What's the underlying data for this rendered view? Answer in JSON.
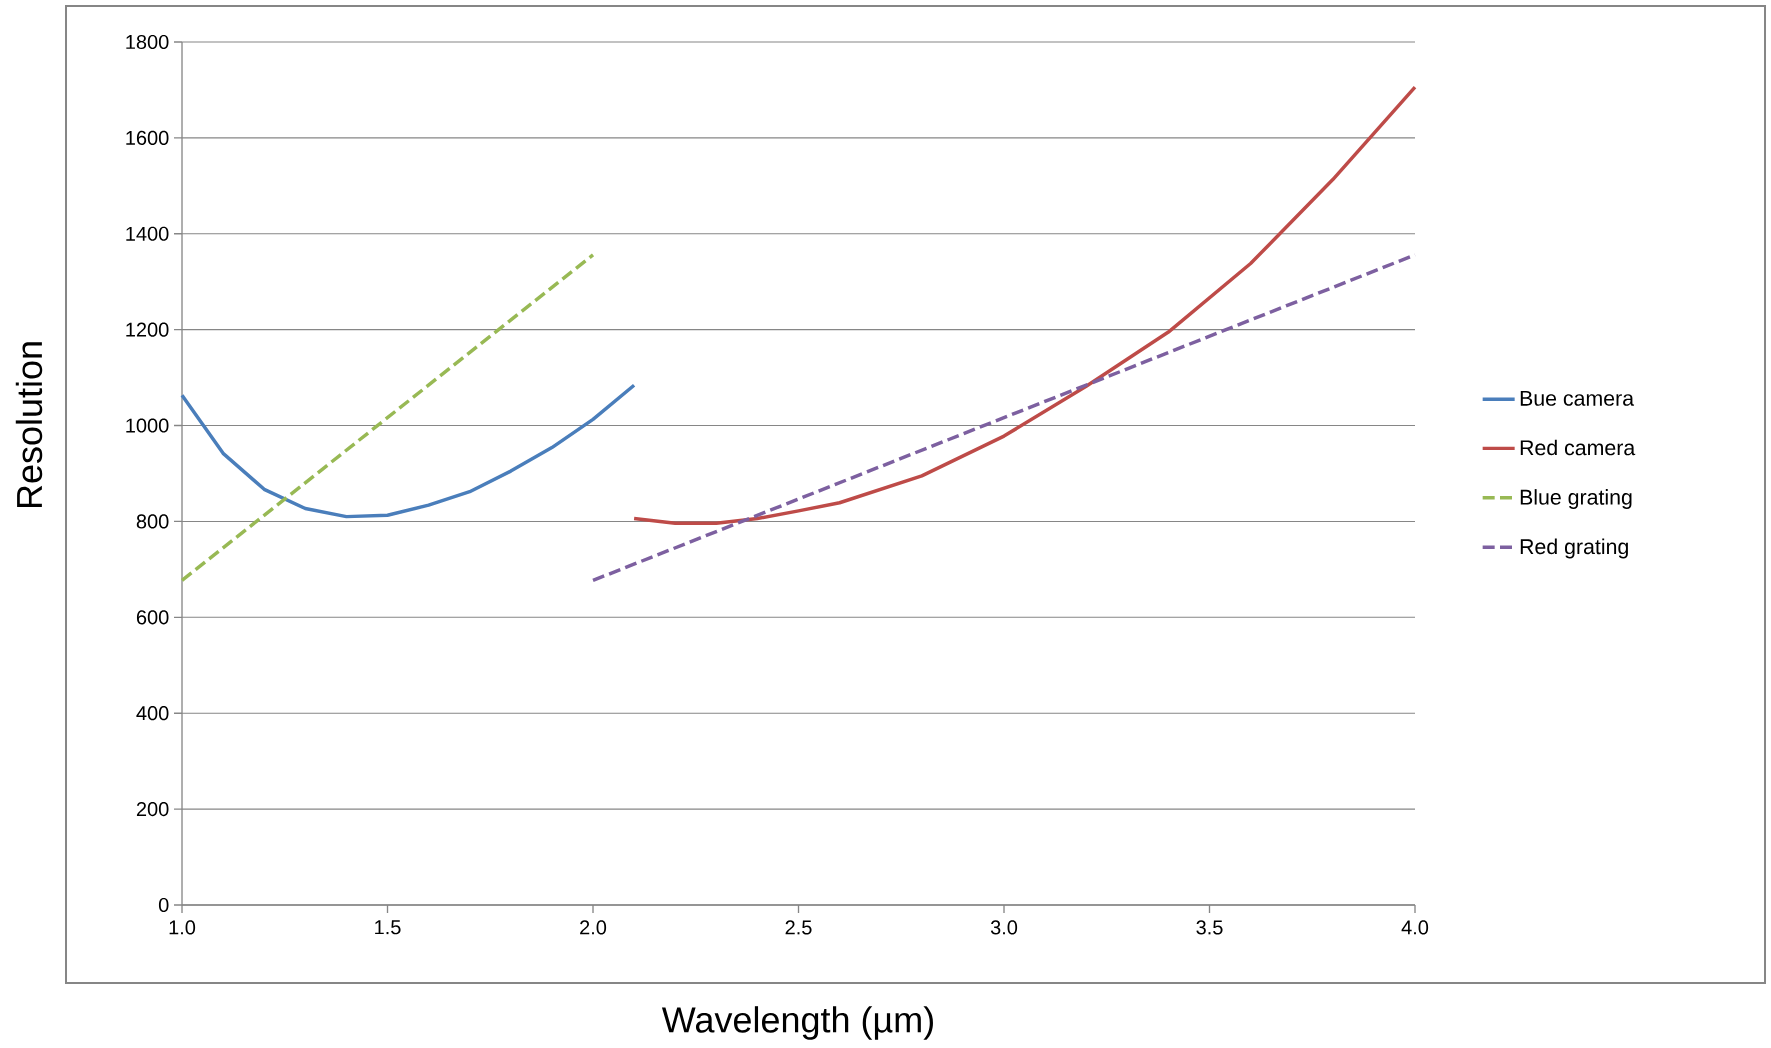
{
  "chart_data": {
    "type": "line",
    "xlabel": "Wavelength (µm)",
    "ylabel": "Resolution",
    "xlim": [
      1,
      4
    ],
    "ylim": [
      0,
      1800
    ],
    "xticks": [
      {
        "value": 1,
        "label": "1.0"
      },
      {
        "value": 1.5,
        "label": "1.5"
      },
      {
        "value": 2,
        "label": "2.0"
      },
      {
        "value": 2.5,
        "label": "2.5"
      },
      {
        "value": 3,
        "label": "3.0"
      },
      {
        "value": 3.5,
        "label": "3.5"
      },
      {
        "value": 4,
        "label": "4.0"
      }
    ],
    "yticks": [
      0,
      200,
      400,
      600,
      800,
      1000,
      1200,
      1400,
      1600,
      1800
    ],
    "grid": "y",
    "legend": "right",
    "marker": "none",
    "series": [
      {
        "name": "Bue camera",
        "color": "#4a7ebb",
        "line_style": "solid",
        "x": [
          1.0,
          1.1,
          1.2,
          1.3,
          1.4,
          1.5,
          1.6,
          1.7,
          1.8,
          1.9,
          2.0,
          2.1
        ],
        "values": [
          1063,
          942,
          867,
          827,
          810,
          813,
          834,
          862,
          905,
          954,
          1013,
          1084
        ]
      },
      {
        "name": "Red camera",
        "color": "#be4b48",
        "line_style": "solid",
        "x": [
          2.1,
          2.2,
          2.3,
          2.4,
          2.5,
          2.6,
          2.8,
          3.0,
          3.2,
          3.4,
          3.6,
          3.8,
          4.0
        ],
        "values": [
          806,
          796,
          796,
          806,
          822,
          839,
          895,
          978,
          1082,
          1195,
          1338,
          1513,
          1706
        ]
      },
      {
        "name": "Blue grating",
        "color": "#98b954",
        "line_style": "dashed",
        "x": [
          1.0,
          2.0
        ],
        "values": [
          677,
          1356
        ]
      },
      {
        "name": "Red grating",
        "color": "#7d60a0",
        "line_style": "dashed",
        "x": [
          2.0,
          4.0
        ],
        "values": [
          677,
          1356
        ]
      }
    ]
  }
}
